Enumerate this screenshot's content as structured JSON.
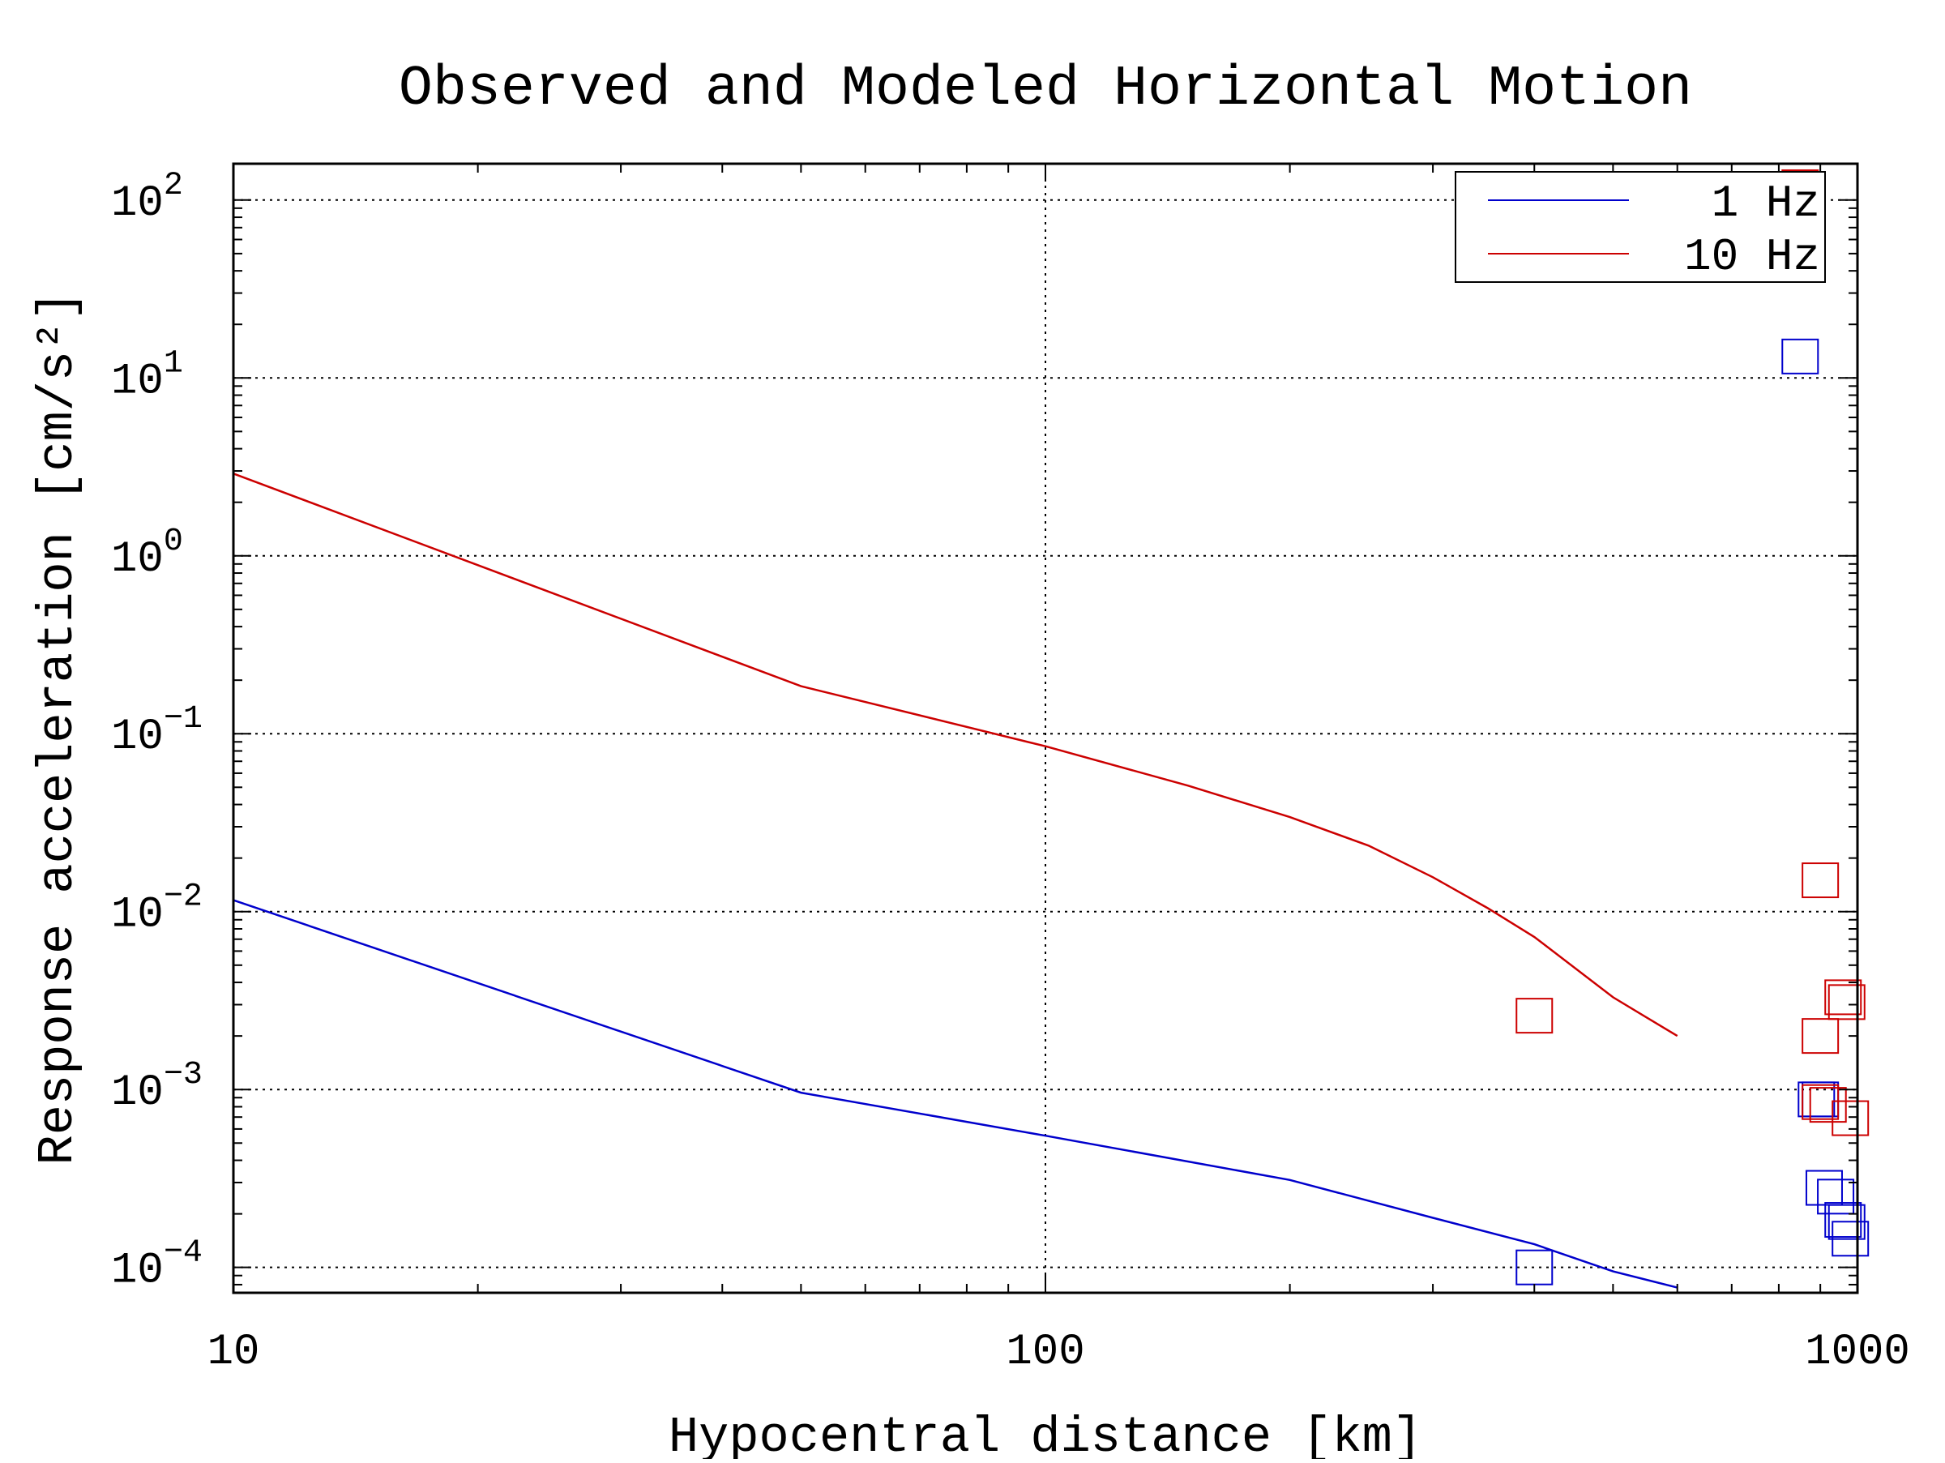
{
  "chart_data": {
    "type": "line",
    "title": "Observed and Modeled Horizontal Motion",
    "xlabel": "Hypocentral distance [km]",
    "ylabel": "Response acceleration [cm/s²]",
    "x_scale": "log",
    "y_scale": "log",
    "xlim": [
      10,
      1000
    ],
    "ylim": [
      7.2e-05,
      160
    ],
    "x_ticks": [
      {
        "value": 10,
        "label": "10"
      },
      {
        "value": 100,
        "label": "100"
      },
      {
        "value": 1000,
        "label": "1000"
      }
    ],
    "y_ticks": [
      {
        "value": 0.0001,
        "base": "10",
        "exp": "−4"
      },
      {
        "value": 0.001,
        "base": "10",
        "exp": "−3"
      },
      {
        "value": 0.01,
        "base": "10",
        "exp": "−2"
      },
      {
        "value": 0.1,
        "base": "10",
        "exp": "−1"
      },
      {
        "value": 1,
        "base": "10",
        "exp": "0"
      },
      {
        "value": 10,
        "base": "10",
        "exp": "1"
      },
      {
        "value": 100,
        "base": "10",
        "exp": "2"
      }
    ],
    "grid": true,
    "legend_position": "top-right",
    "series": [
      {
        "name": "1 Hz",
        "color": "#0000cc",
        "line": {
          "x": [
            10,
            50,
            100,
            200,
            300,
            400,
            500,
            600
          ],
          "y": [
            0.0116,
            0.00096,
            0.00055,
            0.00031,
            0.00019,
            0.000135,
            9.5e-05,
            7.7e-05
          ]
        },
        "observed": {
          "x": [
            400,
            850,
            890,
            900,
            910,
            940,
            960,
            970,
            980
          ],
          "y": [
            0.0001,
            13.2,
            0.00088,
            0.00088,
            0.00028,
            0.00025,
            0.000185,
            0.00018,
            0.000145
          ]
        }
      },
      {
        "name": "10 Hz",
        "color": "#cc0000",
        "line": {
          "x": [
            10,
            50,
            100,
            150,
            200,
            250,
            300,
            350,
            400,
            500,
            600
          ],
          "y": [
            2.9,
            0.185,
            0.085,
            0.051,
            0.034,
            0.0235,
            0.0156,
            0.0105,
            0.0072,
            0.0033,
            0.002
          ]
        },
        "observed": {
          "x": [
            400,
            850,
            900,
            900,
            900,
            920,
            960,
            970,
            980
          ],
          "y": [
            0.0026,
            118,
            0.015,
            0.002,
            0.00085,
            0.00082,
            0.0033,
            0.0031,
            0.00069
          ]
        }
      }
    ]
  }
}
